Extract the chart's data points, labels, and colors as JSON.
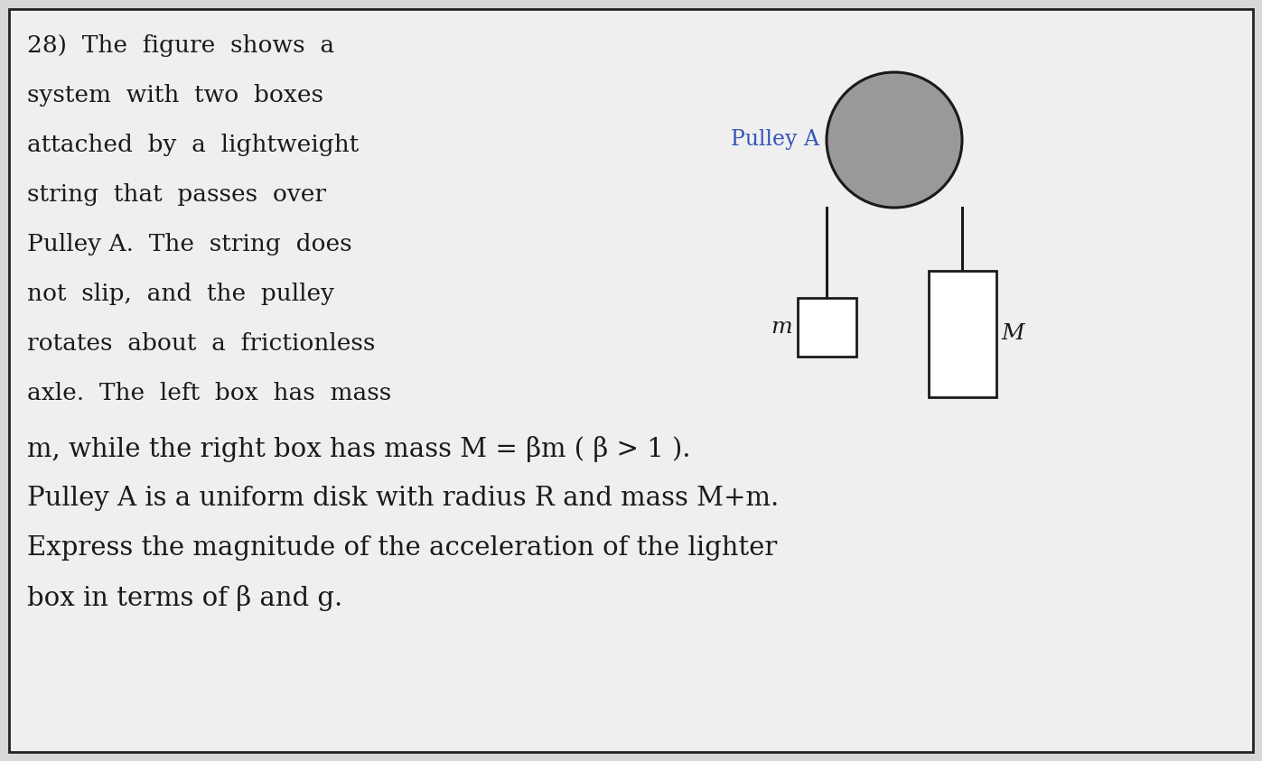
{
  "background_color": "#d8d8d8",
  "inner_bg_color": "#efefef",
  "border_color": "#222222",
  "text_color": "#1a1a1a",
  "pulley_fill": "#999999",
  "pulley_outline": "#1a1a1a",
  "string_color": "#1a1a1a",
  "box_fill": "#ffffff",
  "box_outline": "#1a1a1a",
  "pulley_label_color": "#3355bb",
  "text_lines": [
    "28)  The  figure  shows  a",
    "system  with  two  boxes",
    "attached  by  a  lightweight",
    "string  that  passes  over",
    "Pulley A.  The  string  does",
    "not  slip,  and  the  pulley",
    "rotates  about  a  frictionless",
    "axle.  The  left  box  has  mass"
  ],
  "bottom_lines": [
    "m, while the right box has mass M = βm ( β > 1 ).",
    "Pulley A is a uniform disk with radius R and mass M+m.",
    "Express the magnitude of the acceleration of the lighter",
    "box in terms of β and g."
  ],
  "pulley_label": "Pulley A",
  "mass_left_label": "m",
  "mass_right_label": "M",
  "font_size_main": 19,
  "font_size_bottom": 21,
  "font_size_label": 17,
  "font_size_mass": 18
}
